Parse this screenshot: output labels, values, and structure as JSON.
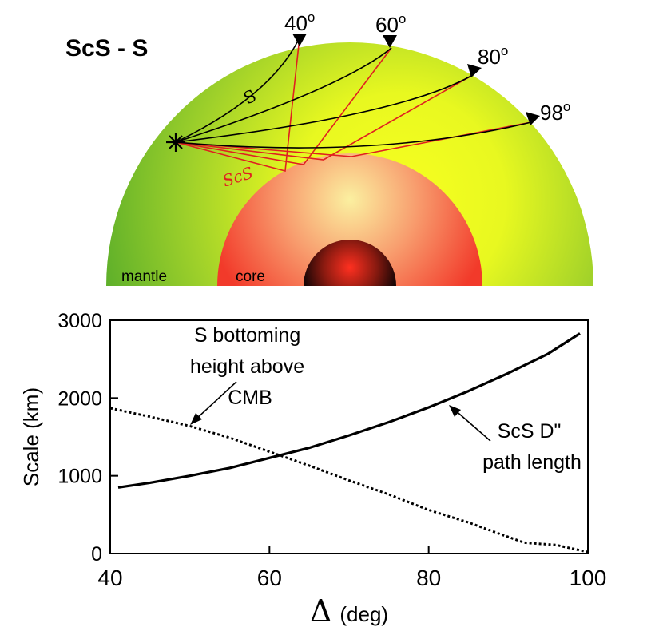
{
  "colors": {
    "mantle": "#5fb02a",
    "mantle_inner": "#f8ff20",
    "core": "#f23a2a",
    "core_inner": "#fbf0a0",
    "inner_core": "#ff3020",
    "ray_s": "#000000",
    "ray_scs": "#e02020"
  },
  "diagram": {
    "title": "ScS - S",
    "source_icon": "earthquake-star-icon",
    "s_ray_label": "S",
    "scs_ray_label": "ScS",
    "region_labels": {
      "mantle": "mantle",
      "core": "core"
    },
    "stations": [
      {
        "distance": 40,
        "label": "40",
        "unit": "o",
        "icon": "station-triangle-icon"
      },
      {
        "distance": 60,
        "label": "60",
        "unit": "o",
        "icon": "station-triangle-icon"
      },
      {
        "distance": 80,
        "label": "80",
        "unit": "o",
        "icon": "station-triangle-icon"
      },
      {
        "distance": 98,
        "label": "98",
        "unit": "o",
        "icon": "station-triangle-icon"
      }
    ]
  },
  "chart_data": {
    "type": "line",
    "xlabel_symbol": "Δ",
    "xlabel_unit": "(deg)",
    "ylabel": "Scale (km)",
    "xlim": [
      40,
      100
    ],
    "ylim": [
      0,
      3000
    ],
    "x_ticks": [
      40,
      60,
      80,
      100
    ],
    "y_ticks": [
      0,
      1000,
      2000,
      3000
    ],
    "grid": false,
    "series": [
      {
        "name": "ScS D\" path length",
        "label_lines": [
          "ScS D\"",
          "path length"
        ],
        "style": "solid",
        "points": [
          [
            41,
            850
          ],
          [
            45,
            910
          ],
          [
            50,
            1000
          ],
          [
            55,
            1100
          ],
          [
            60,
            1230
          ],
          [
            65,
            1360
          ],
          [
            70,
            1520
          ],
          [
            75,
            1690
          ],
          [
            80,
            1880
          ],
          [
            85,
            2090
          ],
          [
            90,
            2320
          ],
          [
            95,
            2570
          ],
          [
            99,
            2830
          ]
        ]
      },
      {
        "name": "S bottoming height above CMB",
        "label_lines": [
          "S bottoming",
          "height above",
          "CMB"
        ],
        "style": "dotted",
        "points": [
          [
            40,
            1870
          ],
          [
            45,
            1760
          ],
          [
            50,
            1640
          ],
          [
            55,
            1490
          ],
          [
            60,
            1310
          ],
          [
            65,
            1130
          ],
          [
            70,
            940
          ],
          [
            75,
            760
          ],
          [
            80,
            560
          ],
          [
            85,
            400
          ],
          [
            89,
            250
          ],
          [
            92,
            140
          ],
          [
            96,
            110
          ],
          [
            100,
            20
          ]
        ]
      }
    ]
  }
}
